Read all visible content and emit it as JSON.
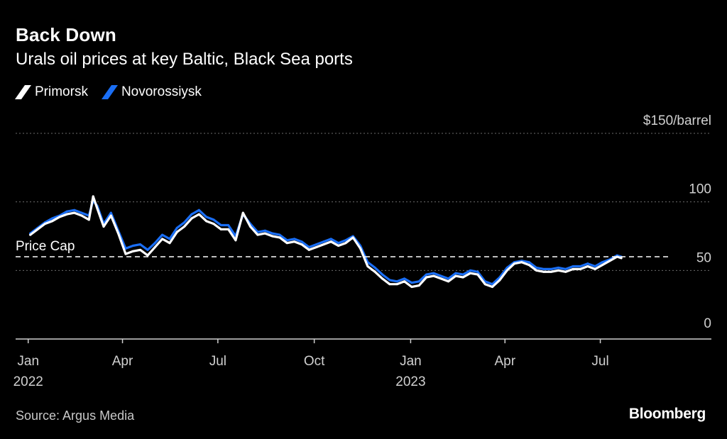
{
  "header": {
    "title": "Back Down",
    "subtitle": "Urals oil prices at key Baltic, Black Sea ports"
  },
  "legend": {
    "items": [
      {
        "label": "Primorsk",
        "color": "#ffffff"
      },
      {
        "label": "Novorossiysk",
        "color": "#1a6ef5"
      }
    ]
  },
  "footer": {
    "source": "Source: Argus Media",
    "brand": "Bloomberg"
  },
  "chart_data": {
    "type": "line",
    "title": "Back Down",
    "subtitle": "Urals oil prices at key Baltic, Black Sea ports",
    "xlabel": "",
    "ylabel": "",
    "ylim": [
      0,
      150
    ],
    "y_ticks": [
      {
        "value": 0,
        "label": "0"
      },
      {
        "value": 50,
        "label": "50"
      },
      {
        "value": 100,
        "label": "100"
      },
      {
        "value": 150,
        "label": "$150/barrel"
      }
    ],
    "x_ticks": [
      {
        "date": "2022-01-01",
        "label": "Jan",
        "year": "2022"
      },
      {
        "date": "2022-04-01",
        "label": "Apr",
        "year": ""
      },
      {
        "date": "2022-07-01",
        "label": "Jul",
        "year": ""
      },
      {
        "date": "2022-10-01",
        "label": "Oct",
        "year": ""
      },
      {
        "date": "2023-01-01",
        "label": "Jan",
        "year": "2023"
      },
      {
        "date": "2023-04-01",
        "label": "Apr",
        "year": ""
      },
      {
        "date": "2023-07-01",
        "label": "Jul",
        "year": ""
      }
    ],
    "xlim": [
      "2021-12-20",
      "2023-10-15"
    ],
    "grid": true,
    "legend_position": "top-left",
    "reference_line": {
      "value": 60,
      "label": "Price Cap"
    },
    "series": [
      {
        "name": "Primorsk",
        "color": "#ffffff",
        "points": [
          [
            "2022-01-03",
            76
          ],
          [
            "2022-01-10",
            80
          ],
          [
            "2022-01-17",
            84
          ],
          [
            "2022-01-24",
            86
          ],
          [
            "2022-01-31",
            89
          ],
          [
            "2022-02-07",
            91
          ],
          [
            "2022-02-14",
            92
          ],
          [
            "2022-02-21",
            90
          ],
          [
            "2022-02-28",
            87
          ],
          [
            "2022-03-04",
            104
          ],
          [
            "2022-03-08",
            95
          ],
          [
            "2022-03-14",
            82
          ],
          [
            "2022-03-21",
            90
          ],
          [
            "2022-03-28",
            77
          ],
          [
            "2022-04-04",
            62
          ],
          [
            "2022-04-11",
            64
          ],
          [
            "2022-04-18",
            65
          ],
          [
            "2022-04-25",
            61
          ],
          [
            "2022-05-02",
            67
          ],
          [
            "2022-05-09",
            73
          ],
          [
            "2022-05-16",
            70
          ],
          [
            "2022-05-23",
            78
          ],
          [
            "2022-05-30",
            82
          ],
          [
            "2022-06-06",
            88
          ],
          [
            "2022-06-13",
            91
          ],
          [
            "2022-06-20",
            86
          ],
          [
            "2022-06-27",
            84
          ],
          [
            "2022-07-04",
            80
          ],
          [
            "2022-07-11",
            80
          ],
          [
            "2022-07-18",
            72
          ],
          [
            "2022-07-25",
            92
          ],
          [
            "2022-08-01",
            82
          ],
          [
            "2022-08-08",
            76
          ],
          [
            "2022-08-15",
            77
          ],
          [
            "2022-08-22",
            75
          ],
          [
            "2022-08-29",
            74
          ],
          [
            "2022-09-05",
            70
          ],
          [
            "2022-09-12",
            71
          ],
          [
            "2022-09-19",
            69
          ],
          [
            "2022-09-26",
            65
          ],
          [
            "2022-10-03",
            67
          ],
          [
            "2022-10-10",
            69
          ],
          [
            "2022-10-17",
            71
          ],
          [
            "2022-10-24",
            68
          ],
          [
            "2022-10-31",
            70
          ],
          [
            "2022-11-07",
            74
          ],
          [
            "2022-11-14",
            66
          ],
          [
            "2022-11-21",
            53
          ],
          [
            "2022-11-28",
            49
          ],
          [
            "2022-12-05",
            44
          ],
          [
            "2022-12-12",
            40
          ],
          [
            "2022-12-19",
            40
          ],
          [
            "2022-12-26",
            42
          ],
          [
            "2023-01-02",
            38
          ],
          [
            "2023-01-09",
            39
          ],
          [
            "2023-01-16",
            45
          ],
          [
            "2023-01-23",
            46
          ],
          [
            "2023-01-30",
            44
          ],
          [
            "2023-02-06",
            42
          ],
          [
            "2023-02-13",
            46
          ],
          [
            "2023-02-20",
            45
          ],
          [
            "2023-02-27",
            48
          ],
          [
            "2023-03-06",
            47
          ],
          [
            "2023-03-13",
            40
          ],
          [
            "2023-03-20",
            38
          ],
          [
            "2023-03-27",
            43
          ],
          [
            "2023-04-03",
            50
          ],
          [
            "2023-04-10",
            55
          ],
          [
            "2023-04-17",
            56
          ],
          [
            "2023-04-24",
            54
          ],
          [
            "2023-05-01",
            50
          ],
          [
            "2023-05-08",
            49
          ],
          [
            "2023-05-15",
            49
          ],
          [
            "2023-05-22",
            50
          ],
          [
            "2023-05-29",
            49
          ],
          [
            "2023-06-05",
            51
          ],
          [
            "2023-06-12",
            51
          ],
          [
            "2023-06-19",
            53
          ],
          [
            "2023-06-26",
            51
          ],
          [
            "2023-07-03",
            54
          ],
          [
            "2023-07-10",
            57
          ],
          [
            "2023-07-17",
            60
          ],
          [
            "2023-07-21",
            59
          ]
        ]
      },
      {
        "name": "Novorossiysk",
        "color": "#1a6ef5",
        "points": [
          [
            "2022-01-03",
            77
          ],
          [
            "2022-01-10",
            81
          ],
          [
            "2022-01-17",
            85
          ],
          [
            "2022-01-24",
            88
          ],
          [
            "2022-01-31",
            90
          ],
          [
            "2022-02-07",
            93
          ],
          [
            "2022-02-14",
            94
          ],
          [
            "2022-02-21",
            92
          ],
          [
            "2022-02-28",
            90
          ],
          [
            "2022-03-04",
            101
          ],
          [
            "2022-03-08",
            97
          ],
          [
            "2022-03-14",
            84
          ],
          [
            "2022-03-21",
            92
          ],
          [
            "2022-03-28",
            79
          ],
          [
            "2022-04-04",
            66
          ],
          [
            "2022-04-11",
            68
          ],
          [
            "2022-04-18",
            69
          ],
          [
            "2022-04-25",
            65
          ],
          [
            "2022-05-02",
            70
          ],
          [
            "2022-05-09",
            76
          ],
          [
            "2022-05-16",
            73
          ],
          [
            "2022-05-23",
            81
          ],
          [
            "2022-05-30",
            85
          ],
          [
            "2022-06-06",
            91
          ],
          [
            "2022-06-13",
            94
          ],
          [
            "2022-06-20",
            89
          ],
          [
            "2022-06-27",
            87
          ],
          [
            "2022-07-04",
            83
          ],
          [
            "2022-07-11",
            83
          ],
          [
            "2022-07-18",
            75
          ],
          [
            "2022-07-25",
            91
          ],
          [
            "2022-08-01",
            84
          ],
          [
            "2022-08-08",
            78
          ],
          [
            "2022-08-15",
            79
          ],
          [
            "2022-08-22",
            77
          ],
          [
            "2022-08-29",
            76
          ],
          [
            "2022-09-05",
            72
          ],
          [
            "2022-09-12",
            73
          ],
          [
            "2022-09-19",
            71
          ],
          [
            "2022-09-26",
            67
          ],
          [
            "2022-10-03",
            69
          ],
          [
            "2022-10-10",
            71
          ],
          [
            "2022-10-17",
            73
          ],
          [
            "2022-10-24",
            70
          ],
          [
            "2022-10-31",
            72
          ],
          [
            "2022-11-07",
            75
          ],
          [
            "2022-11-14",
            68
          ],
          [
            "2022-11-21",
            56
          ],
          [
            "2022-11-28",
            52
          ],
          [
            "2022-12-05",
            47
          ],
          [
            "2022-12-12",
            43
          ],
          [
            "2022-12-19",
            42
          ],
          [
            "2022-12-26",
            44
          ],
          [
            "2023-01-02",
            41
          ],
          [
            "2023-01-09",
            42
          ],
          [
            "2023-01-16",
            47
          ],
          [
            "2023-01-23",
            48
          ],
          [
            "2023-01-30",
            46
          ],
          [
            "2023-02-06",
            44
          ],
          [
            "2023-02-13",
            48
          ],
          [
            "2023-02-20",
            47
          ],
          [
            "2023-02-27",
            50
          ],
          [
            "2023-03-06",
            49
          ],
          [
            "2023-03-13",
            42
          ],
          [
            "2023-03-20",
            40
          ],
          [
            "2023-03-27",
            45
          ],
          [
            "2023-04-03",
            52
          ],
          [
            "2023-04-10",
            56
          ],
          [
            "2023-04-17",
            57
          ],
          [
            "2023-04-24",
            56
          ],
          [
            "2023-05-01",
            52
          ],
          [
            "2023-05-08",
            51
          ],
          [
            "2023-05-15",
            51
          ],
          [
            "2023-05-22",
            52
          ],
          [
            "2023-05-29",
            51
          ],
          [
            "2023-06-05",
            53
          ],
          [
            "2023-06-12",
            53
          ],
          [
            "2023-06-19",
            55
          ],
          [
            "2023-06-26",
            53
          ],
          [
            "2023-07-03",
            56
          ],
          [
            "2023-07-10",
            58
          ],
          [
            "2023-07-17",
            61
          ],
          [
            "2023-07-21",
            60
          ]
        ]
      }
    ]
  }
}
